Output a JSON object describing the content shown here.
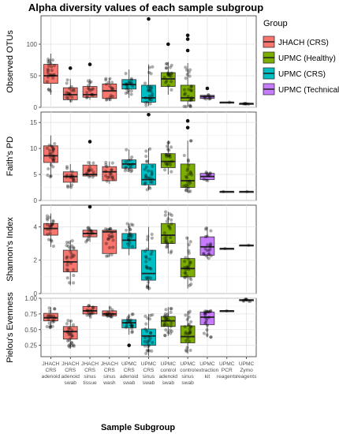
{
  "chart_data": {
    "type": "box",
    "title": "Alpha diversity values of each sample subgroup",
    "xlabel": "Sample Subgroup",
    "categories": [
      [
        "JHACH",
        "CRS",
        "adenoid"
      ],
      [
        "JHACH",
        "CRS",
        "adenoid",
        "swab"
      ],
      [
        "JHACH",
        "CRS",
        "sinus",
        "tissue"
      ],
      [
        "JHACH",
        "CRS",
        "sinus",
        "wash"
      ],
      [
        "UPMC",
        "CRS",
        "adenoid",
        "swab"
      ],
      [
        "UPMC",
        "CRS",
        "sinus",
        "swab"
      ],
      [
        "UPMC",
        "control",
        "adenoid",
        "swab"
      ],
      [
        "UPMC",
        "control",
        "sinus",
        "swab"
      ],
      [
        "UPMC",
        "extraction",
        "kit"
      ],
      [
        "UPMC",
        "PCR",
        "reagents"
      ],
      [
        "UPMC",
        "Zymo",
        "reagents"
      ]
    ],
    "category_group": [
      0,
      0,
      0,
      0,
      2,
      2,
      1,
      1,
      3,
      3,
      3
    ],
    "legend": {
      "title": "Group",
      "position": "right",
      "items": [
        {
          "label": "JHACH (CRS)",
          "color": "#f8766d"
        },
        {
          "label": "UPMC (Healthy)",
          "color": "#7cae00"
        },
        {
          "label": "UPMC (CRS)",
          "color": "#00bfc4"
        },
        {
          "label": "UPMC (Technical)",
          "color": "#c77cff"
        }
      ]
    },
    "grid": true,
    "panels": [
      {
        "ylabel": "Observed OTUs",
        "ylim": [
          0,
          145
        ],
        "yticks": [
          0,
          50,
          100
        ],
        "boxes": [
          {
            "whislo": 20,
            "q1": 38,
            "med": 50,
            "q3": 68,
            "whishi": 85,
            "outliers": []
          },
          {
            "whislo": 8,
            "q1": 12,
            "med": 20,
            "q3": 31,
            "whishi": 45,
            "outliers": [
              62
            ]
          },
          {
            "whislo": 12,
            "q1": 16,
            "med": 20,
            "q3": 33,
            "whishi": 45,
            "outliers": [
              68
            ]
          },
          {
            "whislo": 10,
            "q1": 14,
            "med": 26,
            "q3": 37,
            "whishi": 46,
            "outliers": []
          },
          {
            "whislo": 15,
            "q1": 29,
            "med": 36,
            "q3": 44,
            "whishi": 60,
            "outliers": []
          },
          {
            "whislo": 2,
            "q1": 8,
            "med": 15,
            "q3": 35,
            "whishi": 68,
            "outliers": [
              140
            ]
          },
          {
            "whislo": 20,
            "q1": 33,
            "med": 45,
            "q3": 55,
            "whishi": 72,
            "outliers": [
              100
            ]
          },
          {
            "whislo": 1,
            "q1": 10,
            "med": 15,
            "q3": 35,
            "whishi": 70,
            "outliers": [
              90,
              108,
              114
            ]
          },
          {
            "whislo": 13,
            "q1": 14,
            "med": 17,
            "q3": 19,
            "whishi": 20,
            "outliers": [
              30
            ]
          },
          {
            "whislo": 8,
            "q1": 8,
            "med": 8,
            "q3": 8,
            "whishi": 8,
            "outliers": []
          },
          {
            "whislo": 5,
            "q1": 5,
            "med": 6,
            "q3": 6,
            "whishi": 6,
            "outliers": []
          }
        ]
      },
      {
        "ylabel": "Faith's PD",
        "ylim": [
          0,
          17
        ],
        "yticks": [
          0,
          5,
          10,
          15
        ],
        "boxes": [
          {
            "whislo": 4.5,
            "q1": 7.3,
            "med": 8.6,
            "q3": 10.5,
            "whishi": 12.5,
            "outliers": []
          },
          {
            "whislo": 2.5,
            "q1": 3.5,
            "med": 4.6,
            "q3": 5.5,
            "whishi": 7.0,
            "outliers": []
          },
          {
            "whislo": 4.5,
            "q1": 4.7,
            "med": 5.0,
            "q3": 6.8,
            "whishi": 7.5,
            "outliers": [
              11.3
            ]
          },
          {
            "whislo": 3.2,
            "q1": 3.8,
            "med": 5.5,
            "q3": 6.5,
            "whishi": 7.5,
            "outliers": []
          },
          {
            "whislo": 5.5,
            "q1": 6.2,
            "med": 7.0,
            "q3": 7.8,
            "whishi": 9.8,
            "outliers": []
          },
          {
            "whislo": 2.0,
            "q1": 3.0,
            "med": 4.0,
            "q3": 7.0,
            "whishi": 10.0,
            "outliers": [
              16.5
            ]
          },
          {
            "whislo": 5.0,
            "q1": 6.3,
            "med": 7.5,
            "q3": 9.0,
            "whishi": 11.5,
            "outliers": []
          },
          {
            "whislo": 1.5,
            "q1": 2.5,
            "med": 3.8,
            "q3": 7.0,
            "whishi": 11.5,
            "outliers": [
              14.0,
              15.3
            ]
          },
          {
            "whislo": 3.8,
            "q1": 4.0,
            "med": 4.6,
            "q3": 5.2,
            "whishi": 5.5,
            "outliers": []
          },
          {
            "whislo": 1.7,
            "q1": 1.7,
            "med": 1.7,
            "q3": 1.7,
            "whishi": 1.7,
            "outliers": []
          },
          {
            "whislo": 1.7,
            "q1": 1.7,
            "med": 1.7,
            "q3": 1.7,
            "whishi": 1.7,
            "outliers": []
          }
        ]
      },
      {
        "ylabel": "Shannon's Index",
        "ylim": [
          0,
          5.3
        ],
        "yticks": [
          0,
          2,
          4
        ],
        "boxes": [
          {
            "whislo": 2.8,
            "q1": 3.5,
            "med": 3.9,
            "q3": 4.2,
            "whishi": 4.8,
            "outliers": []
          },
          {
            "whislo": 0.5,
            "q1": 1.3,
            "med": 1.9,
            "q3": 2.6,
            "whishi": 3.2,
            "outliers": []
          },
          {
            "whislo": 3.1,
            "q1": 3.4,
            "med": 3.6,
            "q3": 3.8,
            "whishi": 4.0,
            "outliers": [
              5.2
            ]
          },
          {
            "whislo": 2.2,
            "q1": 2.4,
            "med": 3.7,
            "q3": 3.8,
            "whishi": 3.9,
            "outliers": []
          },
          {
            "whislo": 2.3,
            "q1": 2.7,
            "med": 3.2,
            "q3": 3.6,
            "whishi": 4.2,
            "outliers": []
          },
          {
            "whislo": 0.2,
            "q1": 0.8,
            "med": 1.2,
            "q3": 2.6,
            "whishi": 4.0,
            "outliers": []
          },
          {
            "whislo": 2.4,
            "q1": 3.0,
            "med": 3.5,
            "q3": 4.2,
            "whishi": 4.9,
            "outliers": []
          },
          {
            "whislo": 0.3,
            "q1": 1.0,
            "med": 1.5,
            "q3": 2.1,
            "whishi": 3.4,
            "outliers": []
          },
          {
            "whislo": 2.1,
            "q1": 2.3,
            "med": 2.8,
            "q3": 3.4,
            "whishi": 4.0,
            "outliers": []
          },
          {
            "whislo": 2.7,
            "q1": 2.7,
            "med": 2.7,
            "q3": 2.7,
            "whishi": 2.7,
            "outliers": []
          },
          {
            "whislo": 2.9,
            "q1": 2.9,
            "med": 2.9,
            "q3": 2.9,
            "whishi": 2.9,
            "outliers": []
          }
        ]
      },
      {
        "ylabel": "Pielou's Evenness",
        "ylim": [
          0.07,
          1.0
        ],
        "yticks": [
          0.25,
          0.5,
          0.75,
          1.0
        ],
        "ytick_labels": [
          "0.25",
          "0.50",
          "0.75",
          "1.00"
        ],
        "boxes": [
          {
            "whislo": 0.53,
            "q1": 0.64,
            "med": 0.69,
            "q3": 0.76,
            "whishi": 0.86,
            "outliers": []
          },
          {
            "whislo": 0.2,
            "q1": 0.35,
            "med": 0.47,
            "q3": 0.55,
            "whishi": 0.65,
            "outliers": []
          },
          {
            "whislo": 0.7,
            "q1": 0.75,
            "med": 0.8,
            "q3": 0.87,
            "whishi": 0.9,
            "outliers": []
          },
          {
            "whislo": 0.7,
            "q1": 0.72,
            "med": 0.75,
            "q3": 0.8,
            "whishi": 0.88,
            "outliers": []
          },
          {
            "whislo": 0.42,
            "q1": 0.53,
            "med": 0.61,
            "q3": 0.66,
            "whishi": 0.75,
            "outliers": [
              0.25
            ]
          },
          {
            "whislo": 0.08,
            "q1": 0.25,
            "med": 0.4,
            "q3": 0.51,
            "whishi": 0.75,
            "outliers": []
          },
          {
            "whislo": 0.4,
            "q1": 0.55,
            "med": 0.64,
            "q3": 0.71,
            "whishi": 0.86,
            "outliers": []
          },
          {
            "whislo": 0.12,
            "q1": 0.29,
            "med": 0.39,
            "q3": 0.56,
            "whishi": 0.8,
            "outliers": []
          },
          {
            "whislo": 0.38,
            "q1": 0.58,
            "med": 0.7,
            "q3": 0.78,
            "whishi": 0.8,
            "outliers": []
          },
          {
            "whislo": 0.8,
            "q1": 0.8,
            "med": 0.8,
            "q3": 0.8,
            "whishi": 0.8,
            "outliers": []
          },
          {
            "whislo": 0.95,
            "q1": 0.96,
            "med": 0.97,
            "q3": 0.98,
            "whishi": 0.99,
            "outliers": []
          }
        ]
      }
    ]
  }
}
